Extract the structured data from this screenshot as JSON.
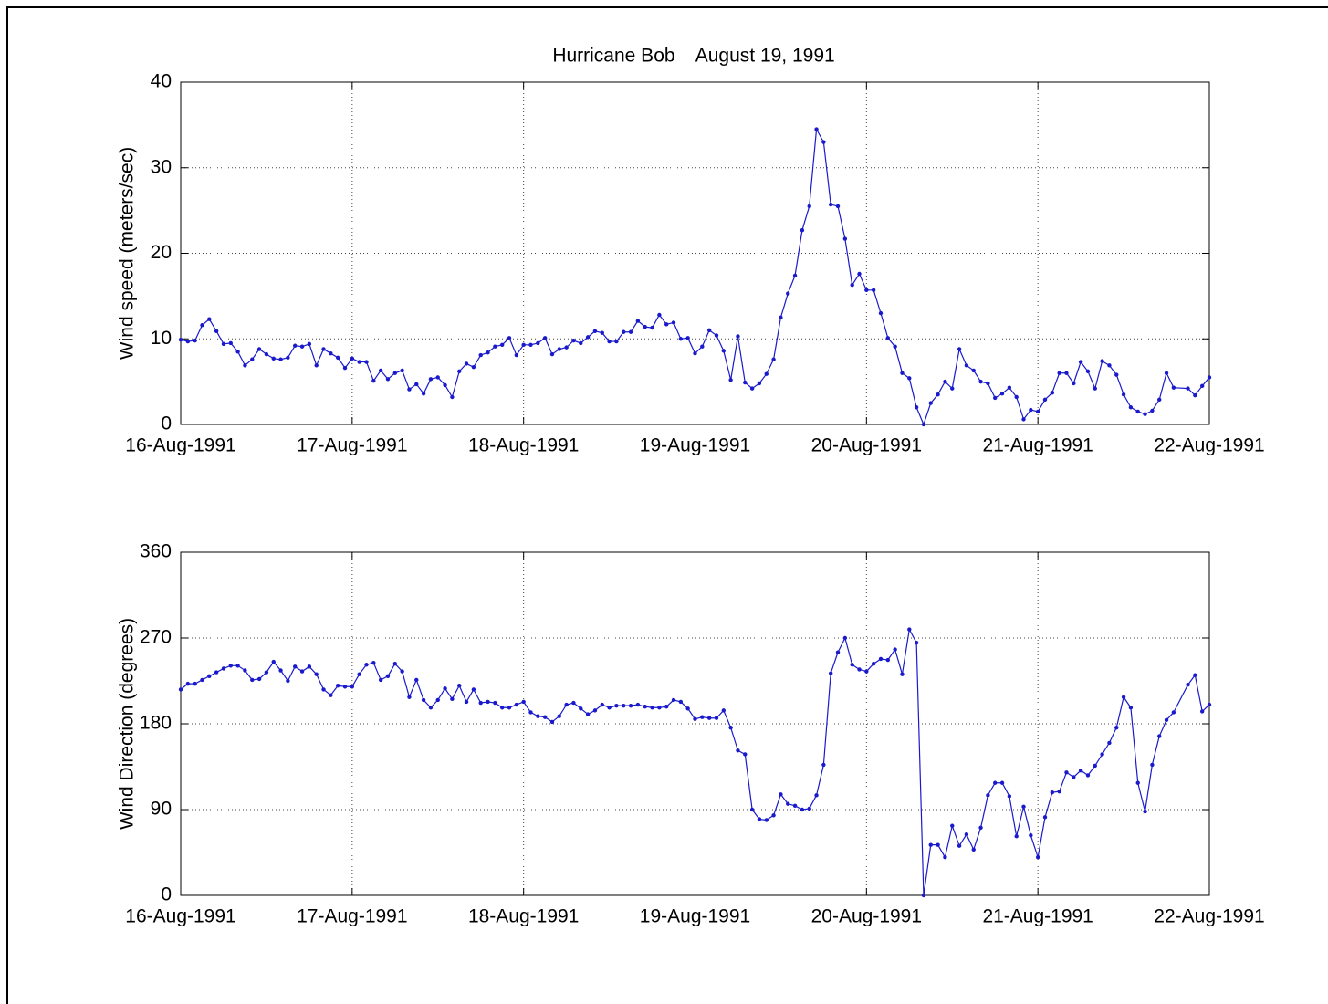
{
  "chart_data": [
    {
      "type": "line",
      "title": "Hurricane Bob    August 19, 1991",
      "ylabel": "Wind speed (meters/sec)",
      "x": [
        0,
        1,
        2,
        3,
        4,
        5,
        6,
        7,
        8,
        9,
        10,
        11,
        12,
        13,
        14,
        15,
        16,
        17,
        18,
        19,
        20,
        21,
        22,
        23,
        24,
        25,
        26,
        27,
        28,
        29,
        30,
        31,
        32,
        33,
        34,
        35,
        36,
        37,
        38,
        39,
        40,
        41,
        42,
        43,
        44,
        45,
        46,
        47,
        48,
        49,
        50,
        51,
        52,
        53,
        54,
        55,
        56,
        57,
        58,
        59,
        60,
        61,
        62,
        63,
        64,
        65,
        66,
        67,
        68,
        69,
        70,
        71,
        72,
        73,
        74,
        75,
        76,
        77,
        78,
        79,
        80,
        81,
        82,
        83,
        84,
        85,
        86,
        87,
        88,
        89,
        90,
        91,
        92,
        93,
        94,
        95,
        96,
        97,
        98,
        99,
        100,
        101,
        102,
        103,
        104,
        105,
        106,
        107,
        108,
        109,
        110,
        111,
        112,
        113,
        114,
        115,
        116,
        117,
        118,
        119,
        120,
        121,
        122,
        123,
        124,
        125,
        126,
        127,
        128,
        129,
        130,
        131,
        132,
        133,
        134,
        135,
        136,
        137,
        138,
        139,
        141,
        142,
        143,
        144
      ],
      "series": [
        {
          "color": "#1a1acc",
          "values": [
            9.9,
            9.7,
            9.8,
            11.6,
            12.3,
            10.9,
            9.4,
            9.5,
            8.5,
            6.9,
            7.6,
            8.8,
            8.2,
            7.7,
            7.6,
            7.8,
            9.2,
            9.1,
            9.4,
            6.9,
            8.8,
            8.3,
            7.8,
            6.6,
            7.7,
            7.3,
            7.3,
            5.1,
            6.3,
            5.3,
            6.0,
            6.3,
            4.1,
            4.7,
            3.6,
            5.3,
            5.5,
            4.6,
            3.2,
            6.2,
            7.1,
            6.7,
            8.1,
            8.4,
            9.1,
            9.3,
            10.1,
            8.1,
            9.3,
            9.3,
            9.5,
            10.1,
            8.2,
            8.8,
            9.0,
            9.8,
            9.5,
            10.2,
            10.9,
            10.7,
            9.7,
            9.7,
            10.8,
            10.8,
            12.1,
            11.4,
            11.3,
            12.8,
            11.7,
            11.9,
            10.0,
            10.1,
            8.3,
            9.1,
            11.0,
            10.4,
            8.6,
            5.2,
            10.3,
            4.9,
            4.2,
            4.8,
            5.9,
            7.6,
            12.5,
            15.3,
            17.4,
            22.7,
            25.5,
            34.5,
            33.0,
            25.7,
            25.5,
            21.7,
            16.3,
            17.6,
            15.7,
            15.7,
            13.0,
            10.1,
            9.1,
            6.0,
            5.4,
            2.0,
            0,
            2.5,
            3.5,
            5.0,
            4.2,
            8.8,
            6.9,
            6.3,
            5.0,
            4.8,
            3.1,
            3.6,
            4.3,
            3.2,
            0.6,
            1.7,
            1.5,
            2.9,
            3.7,
            6.0,
            6.0,
            4.8,
            7.3,
            6.2,
            4.2,
            7.4,
            6.9,
            5.8,
            3.5,
            2.0,
            1.5,
            1.2,
            1.6,
            2.9,
            6.0,
            4.3,
            4.2,
            3.4,
            4.5,
            5.5
          ]
        }
      ],
      "xlim": [
        0,
        144
      ],
      "xticks": [
        {
          "value": 0,
          "label": "16-Aug-1991"
        },
        {
          "value": 24,
          "label": "17-Aug-1991"
        },
        {
          "value": 48,
          "label": "18-Aug-1991"
        },
        {
          "value": 72,
          "label": "19-Aug-1991"
        },
        {
          "value": 96,
          "label": "20-Aug-1991"
        },
        {
          "value": 120,
          "label": "21-Aug-1991"
        },
        {
          "value": 144,
          "label": "22-Aug-1991"
        }
      ],
      "ylim": [
        0,
        40
      ],
      "yticks": [
        0,
        10,
        20,
        30,
        40
      ],
      "grid": true
    },
    {
      "type": "line",
      "ylabel": "Wind Direction (degrees)",
      "x": [
        0,
        1,
        2,
        3,
        4,
        5,
        6,
        7,
        8,
        9,
        10,
        11,
        12,
        13,
        14,
        15,
        16,
        17,
        18,
        19,
        20,
        21,
        22,
        23,
        24,
        25,
        26,
        27,
        28,
        29,
        30,
        31,
        32,
        33,
        34,
        35,
        36,
        37,
        38,
        39,
        40,
        41,
        42,
        43,
        44,
        45,
        46,
        47,
        48,
        49,
        50,
        51,
        52,
        53,
        54,
        55,
        56,
        57,
        58,
        59,
        60,
        61,
        62,
        63,
        64,
        65,
        66,
        67,
        68,
        69,
        70,
        71,
        72,
        73,
        74,
        75,
        76,
        77,
        78,
        79,
        80,
        81,
        82,
        83,
        84,
        85,
        86,
        87,
        88,
        89,
        90,
        91,
        92,
        93,
        94,
        95,
        96,
        97,
        98,
        99,
        100,
        101,
        102,
        103,
        104,
        105,
        106,
        107,
        108,
        109,
        110,
        111,
        112,
        113,
        114,
        115,
        116,
        117,
        118,
        119,
        120,
        121,
        122,
        123,
        124,
        125,
        126,
        127,
        128,
        129,
        130,
        131,
        132,
        133,
        134,
        135,
        136,
        137,
        138,
        139,
        141,
        142,
        143,
        144
      ],
      "series": [
        {
          "color": "#1a1acc",
          "values": [
            216,
            222,
            222,
            226,
            230,
            234,
            238,
            241,
            241,
            236,
            226,
            227,
            234,
            245,
            236,
            225,
            240,
            235,
            240,
            232,
            216,
            210,
            220,
            219,
            219,
            232,
            242,
            244,
            226,
            230,
            243,
            235,
            208,
            226,
            205,
            197,
            205,
            217,
            206,
            220,
            203,
            216,
            202,
            203,
            202,
            197,
            197,
            200,
            203,
            192,
            188,
            187,
            182,
            188,
            200,
            202,
            196,
            190,
            194,
            200,
            197,
            199,
            199,
            199,
            200,
            198,
            197,
            197,
            198,
            205,
            203,
            196,
            185,
            187,
            186,
            186,
            194,
            176,
            152,
            148,
            90,
            80,
            79,
            84,
            106,
            96,
            94,
            90,
            91,
            105,
            137,
            233,
            255,
            270,
            242,
            237,
            235,
            243,
            248,
            247,
            258,
            232,
            279,
            265,
            0,
            53,
            53,
            40,
            73,
            52,
            64,
            48,
            71,
            105,
            118,
            118,
            104,
            62,
            93,
            63,
            40,
            82,
            108,
            109,
            129,
            124,
            131,
            126,
            136,
            148,
            160,
            176,
            208,
            197,
            118,
            88,
            137,
            167,
            184,
            192,
            221,
            231,
            193,
            200
          ]
        }
      ],
      "xlim": [
        0,
        144
      ],
      "xticks": [
        {
          "value": 0,
          "label": "16-Aug-1991"
        },
        {
          "value": 24,
          "label": "17-Aug-1991"
        },
        {
          "value": 48,
          "label": "18-Aug-1991"
        },
        {
          "value": 72,
          "label": "19-Aug-1991"
        },
        {
          "value": 96,
          "label": "20-Aug-1991"
        },
        {
          "value": 120,
          "label": "21-Aug-1991"
        },
        {
          "value": 144,
          "label": "22-Aug-1991"
        }
      ],
      "ylim": [
        0,
        360
      ],
      "yticks": [
        0,
        90,
        180,
        270,
        360
      ],
      "grid": true
    }
  ]
}
